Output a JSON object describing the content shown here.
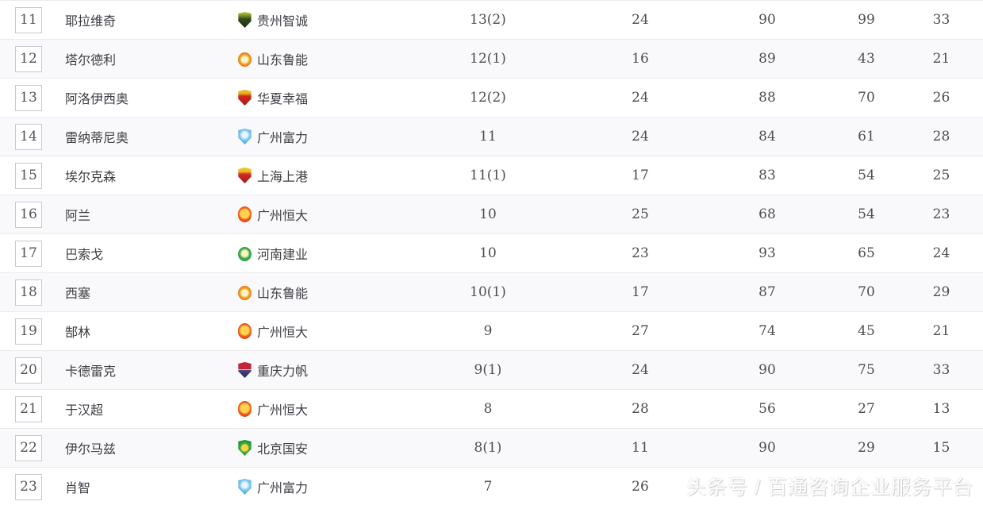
{
  "table": {
    "rows": [
      {
        "rank": "11",
        "player": "耶拉维奇",
        "team_id": "guizhou",
        "goals": "13(2)",
        "stats": [
          "24",
          "90",
          "99",
          "33"
        ]
      },
      {
        "rank": "12",
        "player": "塔尔德利",
        "team_id": "luneng",
        "goals": "12(1)",
        "stats": [
          "16",
          "89",
          "43",
          "21"
        ]
      },
      {
        "rank": "13",
        "player": "阿洛伊西奥",
        "team_id": "huaxia",
        "goals": "12(2)",
        "stats": [
          "24",
          "88",
          "70",
          "26"
        ]
      },
      {
        "rank": "14",
        "player": "雷纳蒂尼奥",
        "team_id": "rf",
        "goals": "11",
        "stats": [
          "24",
          "84",
          "61",
          "28"
        ]
      },
      {
        "rank": "15",
        "player": "埃尔克森",
        "team_id": "sipg",
        "goals": "11(1)",
        "stats": [
          "17",
          "83",
          "54",
          "25"
        ]
      },
      {
        "rank": "16",
        "player": "阿兰",
        "team_id": "evergrande",
        "goals": "10",
        "stats": [
          "25",
          "68",
          "54",
          "23"
        ]
      },
      {
        "rank": "17",
        "player": "巴索戈",
        "team_id": "henan",
        "goals": "10",
        "stats": [
          "23",
          "93",
          "65",
          "24"
        ]
      },
      {
        "rank": "18",
        "player": "西塞",
        "team_id": "luneng",
        "goals": "10(1)",
        "stats": [
          "17",
          "87",
          "70",
          "29"
        ]
      },
      {
        "rank": "19",
        "player": "郜林",
        "team_id": "evergrande",
        "goals": "9",
        "stats": [
          "27",
          "74",
          "45",
          "21"
        ]
      },
      {
        "rank": "20",
        "player": "卡德雷克",
        "team_id": "lifan",
        "goals": "9(1)",
        "stats": [
          "24",
          "90",
          "75",
          "33"
        ]
      },
      {
        "rank": "21",
        "player": "于汉超",
        "team_id": "evergrande",
        "goals": "8",
        "stats": [
          "28",
          "56",
          "27",
          "13"
        ]
      },
      {
        "rank": "22",
        "player": "伊尔马兹",
        "team_id": "guoan",
        "goals": "8(1)",
        "stats": [
          "11",
          "90",
          "29",
          "15"
        ]
      },
      {
        "rank": "23",
        "player": "肖智",
        "team_id": "rf",
        "goals": "7",
        "stats": [
          "26",
          "",
          "",
          ""
        ]
      }
    ]
  },
  "teams": {
    "guizhou": {
      "name": "贵州智诚",
      "badge_shape": "shield",
      "badge_colors": [
        "#b9c636",
        "#1c2c10"
      ]
    },
    "luneng": {
      "name": "山东鲁能",
      "badge_shape": "circle",
      "badge_colors": [
        "#fdf3c8",
        "#e66c1d"
      ]
    },
    "huaxia": {
      "name": "华夏幸福",
      "badge_shape": "shield",
      "badge_colors": [
        "#e7b919",
        "#a91713"
      ]
    },
    "rf": {
      "name": "广州富力",
      "badge_shape": "shield",
      "badge_colors": [
        "#79c4ee",
        "#2f92d6"
      ]
    },
    "sipg": {
      "name": "上海上港",
      "badge_shape": "shield",
      "badge_colors": [
        "#efc11f",
        "#9e1a1e"
      ]
    },
    "evergrande": {
      "name": "广州恒大",
      "badge_shape": "oval",
      "badge_colors": [
        "#ffd44d",
        "#c32718"
      ]
    },
    "henan": {
      "name": "河南建业",
      "badge_shape": "circle",
      "badge_colors": [
        "#fdf4c4",
        "#1f8a35"
      ]
    },
    "lifan": {
      "name": "重庆力帆",
      "badge_shape": "shield",
      "badge_colors": [
        "#c32439",
        "#282862"
      ]
    },
    "guoan": {
      "name": "北京国安",
      "badge_shape": "shield",
      "badge_colors": [
        "#ffd342",
        "#187a2b"
      ]
    }
  },
  "watermark": {
    "text": "头条号 / 百通咨询企业服务平台"
  },
  "colors": {
    "row_alt_bg": "#f9f9fb",
    "row_border": "#ebebef",
    "text_primary": "#3e3e44",
    "text_numeric": "#4d4d55",
    "rank_box_border": "#c9c9cf"
  }
}
